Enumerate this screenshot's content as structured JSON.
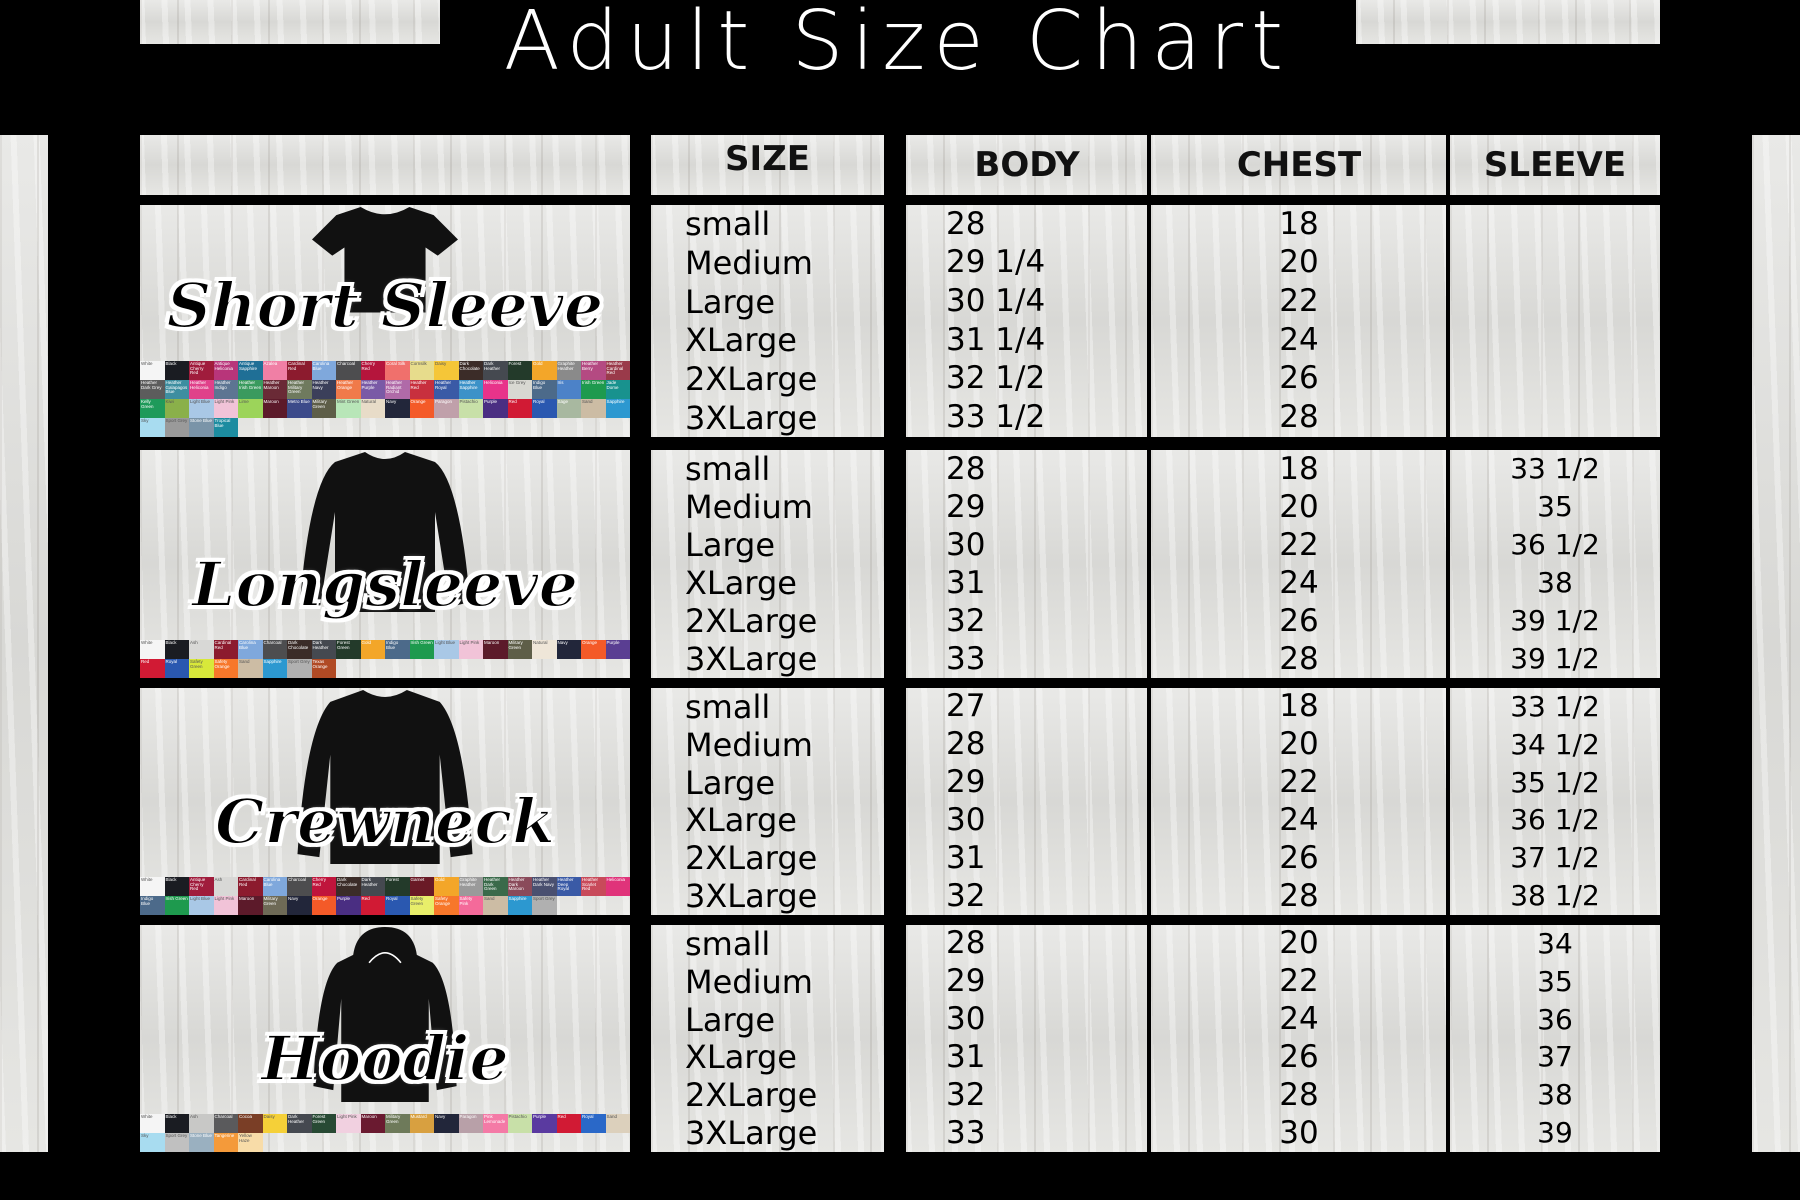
{
  "title": "Adult Size Chart",
  "headers": {
    "size": "SIZE",
    "body": "BODY",
    "chest": "CHEST",
    "sleeve": "SLEEVE"
  },
  "sections": [
    {
      "name": "Short Sleeve",
      "garment": "tshirt-icon",
      "sizes": [
        "small",
        "Medium",
        "Large",
        "XLarge",
        "2XLarge",
        "3XLarge"
      ],
      "body": [
        "28",
        "29 1/4",
        "30 1/4",
        "31 1/4",
        "32 1/2",
        "33 1/2"
      ],
      "chest": [
        "18",
        "20",
        "22",
        "24",
        "26",
        "28"
      ],
      "sleeve": [],
      "swatches": [
        [
          "White",
          "#f5f5f5"
        ],
        [
          "Black",
          "#1a1c22"
        ],
        [
          "Antique Cherry Red",
          "#a01c3c"
        ],
        [
          "Antique Heliconia",
          "#b8357a"
        ],
        [
          "Antique Sapphire",
          "#1f6f96"
        ],
        [
          "Azalea",
          "#f07fa5"
        ],
        [
          "Cardinal Red",
          "#8c1b2e"
        ],
        [
          "Carolina Blue",
          "#7fa8dc"
        ],
        [
          "Charcoal",
          "#4d4d4f"
        ],
        [
          "Cherry Red",
          "#b5153c"
        ],
        [
          "Coral Silk",
          "#f0706c"
        ],
        [
          "Cornsilk",
          "#e7dc8c"
        ],
        [
          "Daisy",
          "#f5c638"
        ],
        [
          "Dark Chocolate",
          "#3b2c28"
        ],
        [
          "Dark Heather",
          "#454950"
        ],
        [
          "Forest",
          "#233a2a"
        ],
        [
          "Gold",
          "#f3a629"
        ],
        [
          "Graphite Heather",
          "#8a8a8a"
        ],
        [
          "Heather Berry",
          "#b44a82"
        ],
        [
          "Heather Cardinal Red",
          "#9a3a4a"
        ],
        [
          "Heather Dark Grey",
          "#5c5c5c"
        ],
        [
          "Heather Galapagos Blue",
          "#3d8ea0"
        ],
        [
          "Heather Heliconia",
          "#e0418a"
        ],
        [
          "Heather Indigo",
          "#5d7592"
        ],
        [
          "Heather Irish Green",
          "#3a9a5e"
        ],
        [
          "Heather Maroon",
          "#6a2a36"
        ],
        [
          "Heather Military Green",
          "#6f7a5e"
        ],
        [
          "Heather Navy",
          "#3b3f5a"
        ],
        [
          "Heather Orange",
          "#f07a4a"
        ],
        [
          "Heather Purple",
          "#7a5aa6"
        ],
        [
          "Heather Radiant Orchid",
          "#b06aa8"
        ],
        [
          "Heather Red",
          "#c8303e"
        ],
        [
          "Heather Royal",
          "#3a5aa6"
        ],
        [
          "Heather Sapphire",
          "#3c92c8"
        ],
        [
          "Heliconia",
          "#e8338a"
        ],
        [
          "Ice Grey",
          "#d8d8d2"
        ],
        [
          "Indigo Blue",
          "#4c6a8a"
        ],
        [
          "Iris",
          "#4c82c8"
        ],
        [
          "Irish Green",
          "#1e9a4e"
        ],
        [
          "Jade Dome",
          "#18928e"
        ],
        [
          "Kelly Green",
          "#1e9a5a"
        ],
        [
          "Kiwi",
          "#8ab04a"
        ],
        [
          "Light Blue",
          "#a9c8e6"
        ],
        [
          "Light Pink",
          "#f1c3d8"
        ],
        [
          "Lime",
          "#9cd45a"
        ],
        [
          "Maroon",
          "#5c1a2a"
        ],
        [
          "Metro Blue",
          "#3c4a8a"
        ],
        [
          "Military Green",
          "#5e5e48"
        ],
        [
          "Mint Green",
          "#b8e6b8"
        ],
        [
          "Natural",
          "#e8dcc8"
        ],
        [
          "Navy",
          "#22263a"
        ],
        [
          "Orange",
          "#f45a28"
        ],
        [
          "Paragon",
          "#c0a0aa"
        ],
        [
          "Pistachio",
          "#c8e0a8"
        ],
        [
          "Purple",
          "#4a2e82"
        ],
        [
          "Red",
          "#d11a34"
        ],
        [
          "Royal",
          "#2a58b0"
        ],
        [
          "Sage",
          "#a8b8a0"
        ],
        [
          "Sand",
          "#ccbca4"
        ],
        [
          "Sapphire",
          "#2c98d0"
        ],
        [
          "Sky",
          "#a8dcf0"
        ],
        [
          "Sport Grey",
          "#9a9a9a"
        ],
        [
          "Stone Blue",
          "#7a94a8"
        ],
        [
          "Tropical Blue",
          "#1c8ca0"
        ]
      ]
    },
    {
      "name": "Longsleeve",
      "garment": "longsleeve-icon",
      "sizes": [
        "small",
        "Medium",
        "Large",
        "XLarge",
        "2XLarge",
        "3XLarge"
      ],
      "body": [
        "28",
        "29",
        "30",
        "31",
        "32",
        "33"
      ],
      "chest": [
        "18",
        "20",
        "22",
        "24",
        "26",
        "28"
      ],
      "sleeve": [
        "33 1/2",
        "35",
        "36 1/2",
        "38",
        "39 1/2",
        "39 1/2"
      ],
      "swatches": [
        [
          "White",
          "#f5f5f5"
        ],
        [
          "Black",
          "#1a1c22"
        ],
        [
          "Ash",
          "#d8d8d6"
        ],
        [
          "Cardinal Red",
          "#8c1b2e"
        ],
        [
          "Carolina Blue",
          "#7fa8dc"
        ],
        [
          "Charcoal",
          "#4d4d4f"
        ],
        [
          "Dark Chocolate",
          "#3b2c28"
        ],
        [
          "Dark Heather",
          "#454950"
        ],
        [
          "Forest Green",
          "#233a2a"
        ],
        [
          "Gold",
          "#f3a629"
        ],
        [
          "Indigo Blue",
          "#4c6a8a"
        ],
        [
          "Irish Green",
          "#1e9a4e"
        ],
        [
          "Light Blue",
          "#a9c8e6"
        ],
        [
          "Light Pink",
          "#f1c3d8"
        ],
        [
          "Maroon",
          "#5c1a2a"
        ],
        [
          "Military Green",
          "#5e5e48"
        ],
        [
          "Natural",
          "#efe6d8"
        ],
        [
          "Navy",
          "#22263a"
        ],
        [
          "Orange",
          "#f45a28"
        ],
        [
          "Purple",
          "#5a3e92"
        ],
        [
          "Red",
          "#d11a34"
        ],
        [
          "Royal",
          "#2a58b0"
        ],
        [
          "Safety Green",
          "#d8e83a"
        ],
        [
          "Safety Orange",
          "#f7772a"
        ],
        [
          "Sand",
          "#ccbca4"
        ],
        [
          "Sapphire",
          "#2c98d0"
        ],
        [
          "Sport Grey",
          "#b0b0b0"
        ],
        [
          "Texas Orange",
          "#b04a24"
        ]
      ]
    },
    {
      "name": "Crewneck",
      "garment": "crewneck-icon",
      "sizes": [
        "small",
        "Medium",
        "Large",
        "XLarge",
        "2XLarge",
        "3XLarge"
      ],
      "body": [
        "27",
        "28",
        "29",
        "30",
        "31",
        "32"
      ],
      "chest": [
        "18",
        "20",
        "22",
        "24",
        "26",
        "28"
      ],
      "sleeve": [
        "33 1/2",
        "34 1/2",
        "35 1/2",
        "36 1/2",
        "37 1/2",
        "38 1/2"
      ],
      "swatches": [
        [
          "White",
          "#f5f5f5"
        ],
        [
          "Black",
          "#1a1c22"
        ],
        [
          "Antique Cherry Red",
          "#a01c3c"
        ],
        [
          "Ash",
          "#d8d8d6"
        ],
        [
          "Cardinal Red",
          "#8c1b2e"
        ],
        [
          "Carolina Blue",
          "#7fa8dc"
        ],
        [
          "Charcoal",
          "#4d4d4f"
        ],
        [
          "Cherry Red",
          "#c0153c"
        ],
        [
          "Dark Chocolate",
          "#3b2c28"
        ],
        [
          "Dark Heather",
          "#454950"
        ],
        [
          "Forest",
          "#233a2a"
        ],
        [
          "Garnet",
          "#6a1a26"
        ],
        [
          "Gold",
          "#f3a629"
        ],
        [
          "Graphite Heather",
          "#9a9a9a"
        ],
        [
          "Heather Dark Green",
          "#3a6a4a"
        ],
        [
          "Heather Dark Maroon",
          "#8a4a5a"
        ],
        [
          "Heather Dark Navy",
          "#4a5070"
        ],
        [
          "Heather Deep Royal",
          "#3a5aa6"
        ],
        [
          "Heather Scarlet Red",
          "#c84a5a"
        ],
        [
          "Heliconia",
          "#e0337a"
        ],
        [
          "Indigo Blue",
          "#4c6a8a"
        ],
        [
          "Irish Green",
          "#1e9a4e"
        ],
        [
          "Light Blue",
          "#a9c8e6"
        ],
        [
          "Light Pink",
          "#f1c3d8"
        ],
        [
          "Maroon",
          "#5c1a2a"
        ],
        [
          "Military Green",
          "#6e6a56"
        ],
        [
          "Navy",
          "#22263a"
        ],
        [
          "Orange",
          "#f45a28"
        ],
        [
          "Purple",
          "#4a2e82"
        ],
        [
          "Red",
          "#d11a34"
        ],
        [
          "Royal",
          "#2a58b0"
        ],
        [
          "Safety Green",
          "#e8ee6a"
        ],
        [
          "Safety Orange",
          "#f7772a"
        ],
        [
          "Safety Pink",
          "#f46a9a"
        ],
        [
          "Sand",
          "#ccbca4"
        ],
        [
          "Sapphire",
          "#2c98d0"
        ],
        [
          "Sport Grey",
          "#b0b0b0"
        ]
      ]
    },
    {
      "name": "Hoodie",
      "garment": "hoodie-icon",
      "sizes": [
        "small",
        "Medium",
        "Large",
        "XLarge",
        "2XLarge",
        "3XLarge"
      ],
      "body": [
        "28",
        "29",
        "30",
        "31",
        "32",
        "33"
      ],
      "chest": [
        "20",
        "22",
        "24",
        "26",
        "28",
        "30"
      ],
      "sleeve": [
        "34",
        "35",
        "36",
        "37",
        "38",
        "39"
      ],
      "swatches": [
        [
          "White",
          "#f5f5f5"
        ],
        [
          "Black",
          "#1a1c22"
        ],
        [
          "Ash",
          "#c8c8c6"
        ],
        [
          "Charcoal",
          "#5a5a5c"
        ],
        [
          "Cocoa",
          "#7a3e26"
        ],
        [
          "Daisy",
          "#f5d038"
        ],
        [
          "Dark Heather",
          "#454950"
        ],
        [
          "Forest Green",
          "#284a34"
        ],
        [
          "Light Pink",
          "#f1d0e0"
        ],
        [
          "Maroon",
          "#6a1a30"
        ],
        [
          "Military Green",
          "#6e7a5a"
        ],
        [
          "Mustard",
          "#d8a040"
        ],
        [
          "Navy",
          "#22263a"
        ],
        [
          "Paragon",
          "#b8a0a8"
        ],
        [
          "Pink Lemonade",
          "#f47aa6"
        ],
        [
          "Pistachio",
          "#c8e0a8"
        ],
        [
          "Purple",
          "#5a3aa0"
        ],
        [
          "Red",
          "#d11a34"
        ],
        [
          "Royal",
          "#2a68c8"
        ],
        [
          "Sand",
          "#dcd0bc"
        ],
        [
          "Sky",
          "#a8dcf0"
        ],
        [
          "Sport Grey",
          "#c0c0c0"
        ],
        [
          "Stone Blue",
          "#9ab0c0"
        ],
        [
          "Tangerine",
          "#f49a3a"
        ],
        [
          "Yellow Haze",
          "#f8dca8"
        ]
      ]
    }
  ]
}
